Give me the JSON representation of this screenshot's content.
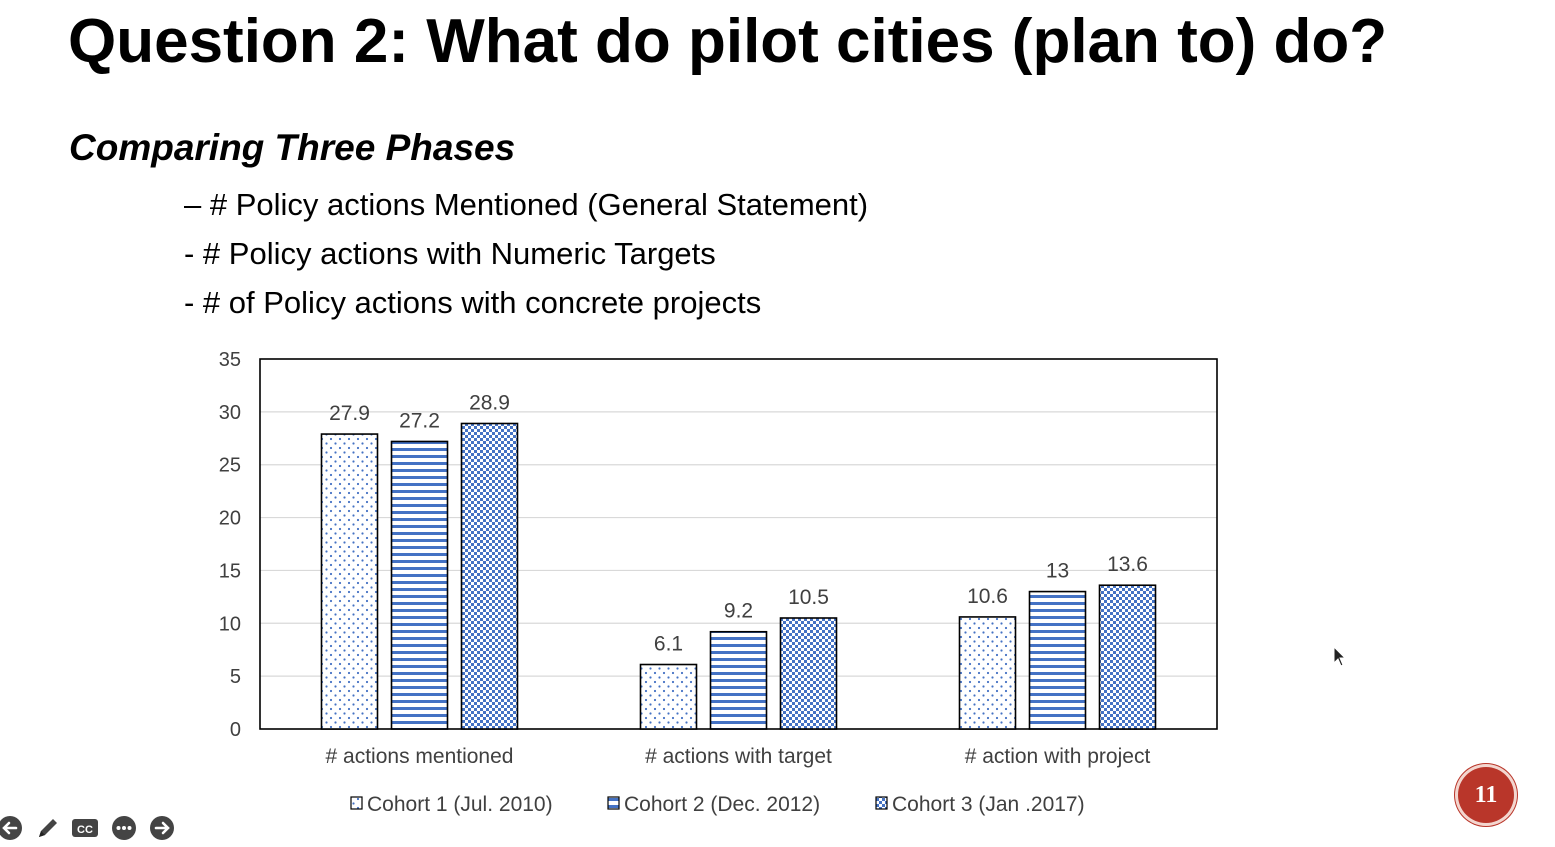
{
  "slide": {
    "title": "Question 2: What do pilot cities (plan to) do?",
    "subtitle": "Comparing Three Phases",
    "bullets": [
      "– # Policy actions Mentioned (General Statement)",
      "- # Policy actions with Numeric Targets",
      "- # of Policy actions with concrete projects"
    ],
    "page_number": "11"
  },
  "toolbar": {
    "icons": [
      "back-arrow-icon",
      "pen-icon",
      "closed-captions-icon",
      "more-options-icon",
      "forward-arrow-icon"
    ],
    "cc_label": "CC"
  },
  "chart_data": {
    "type": "bar",
    "categories": [
      "# actions mentioned",
      "# actions with target",
      "# action with project"
    ],
    "series": [
      {
        "name": "Cohort 1 (Jul. 2010)",
        "values": [
          27.9,
          6.1,
          10.6
        ],
        "pattern": "dots"
      },
      {
        "name": "Cohort 2 (Dec. 2012)",
        "values": [
          27.2,
          9.2,
          13
        ],
        "pattern": "horizontal-lines"
      },
      {
        "name": "Cohort 3 (Jan .2017)",
        "values": [
          28.9,
          10.5,
          13.6
        ],
        "pattern": "checker"
      }
    ],
    "value_labels": [
      [
        "27.9",
        "6.1",
        "10.6"
      ],
      [
        "27.2",
        "9.2",
        "13"
      ],
      [
        "28.9",
        "10.5",
        "13.6"
      ]
    ],
    "yticks": [
      0,
      5,
      10,
      15,
      20,
      25,
      30,
      35
    ],
    "ylim": [
      0,
      35
    ],
    "grid": true,
    "legend": "bottom",
    "colors": {
      "pattern": "#4472c4",
      "outline": "#000000",
      "grid": "#d9d9d9",
      "text": "#404040"
    }
  }
}
